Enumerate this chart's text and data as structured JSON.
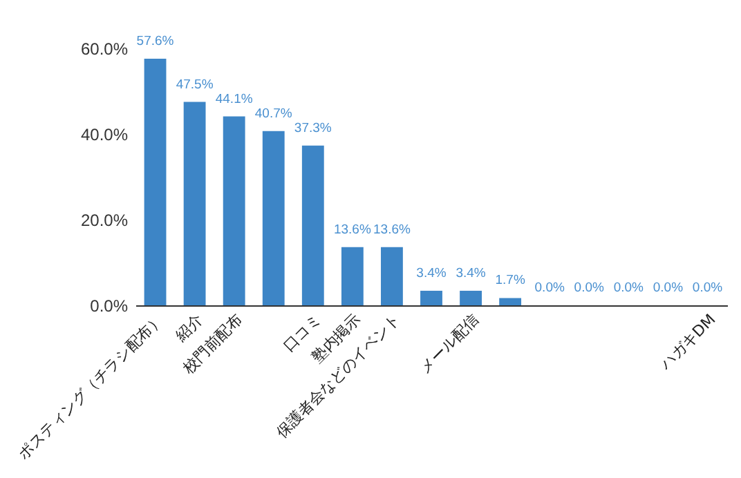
{
  "chart_data": {
    "type": "bar",
    "categories": [
      "ポスティング（チラシ配布）",
      "紹介",
      "校門前配布",
      null,
      "口コミ",
      "塾内掲示",
      "保護者会などのイベント",
      null,
      "メール配信",
      null,
      null,
      null,
      null,
      null,
      "ハガキDM"
    ],
    "values": [
      57.6,
      47.5,
      44.1,
      40.7,
      37.3,
      13.6,
      13.6,
      3.4,
      3.4,
      1.7,
      0,
      0,
      0,
      0,
      0
    ],
    "value_labels": [
      "57.6%",
      "47.5%",
      "44.1%",
      "40.7%",
      "37.3%",
      "13.6%",
      "13.6%",
      "3.4%",
      "3.4%",
      "1.7%",
      "0.0%",
      "0.0%",
      "0.0%",
      "0.0%",
      "0.0%"
    ],
    "color": "#3d85c6",
    "ylim": [
      0,
      60
    ],
    "yticks": [
      {
        "value": 0,
        "label": "0.0%"
      },
      {
        "value": 20,
        "label": "20.0%"
      },
      {
        "value": 40,
        "label": "40.0%"
      },
      {
        "value": 60,
        "label": "60.0%"
      }
    ]
  }
}
